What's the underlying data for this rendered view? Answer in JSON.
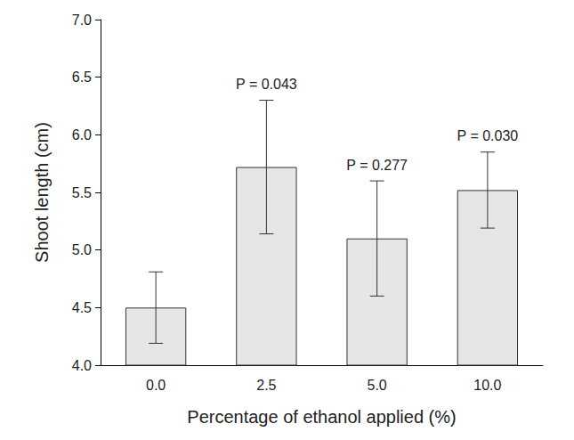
{
  "chart_data": {
    "type": "bar",
    "x_label": "Percentage of ethanol applied (%)",
    "y_label": "Shoot length (cm)",
    "categories": [
      "0.0",
      "2.5",
      "5.0",
      "10.0"
    ],
    "values": [
      4.5,
      5.72,
      5.1,
      5.52
    ],
    "errors": [
      0.31,
      0.58,
      0.5,
      0.33
    ],
    "annotations": [
      null,
      "P = 0.043",
      "P = 0.277",
      "P = 0.030"
    ],
    "color": "#e6e6e6",
    "ylim": [
      4.0,
      7.0
    ],
    "yticks": [
      {
        "value": 4.0,
        "label": "4.0"
      },
      4.5,
      {
        "value": 5.0,
        "label": "5.0"
      },
      5.5,
      {
        "value": 6.0,
        "label": "6.0"
      },
      6.5,
      {
        "value": 7.0,
        "label": "7.0"
      }
    ],
    "grid": false
  }
}
